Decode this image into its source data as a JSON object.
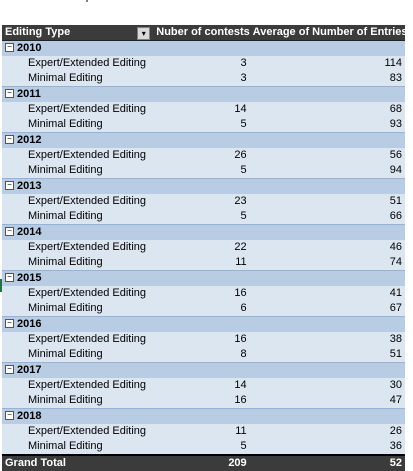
{
  "header": {
    "col1": "Editing Type",
    "col2": "Nuber of contests",
    "col3": "Average of Number of Entries",
    "filter_icon": "filter-dropdown-icon"
  },
  "years": [
    {
      "year": "2010",
      "rows": [
        {
          "type": "Expert/Extended Editing",
          "contests": "3",
          "avg": "114"
        },
        {
          "type": "Minimal Editing",
          "contests": "3",
          "avg": "83"
        }
      ]
    },
    {
      "year": "2011",
      "rows": [
        {
          "type": "Expert/Extended Editing",
          "contests": "14",
          "avg": "68"
        },
        {
          "type": "Minimal Editing",
          "contests": "5",
          "avg": "93"
        }
      ]
    },
    {
      "year": "2012",
      "rows": [
        {
          "type": "Expert/Extended Editing",
          "contests": "26",
          "avg": "56"
        },
        {
          "type": "Minimal Editing",
          "contests": "5",
          "avg": "94"
        }
      ]
    },
    {
      "year": "2013",
      "rows": [
        {
          "type": "Expert/Extended Editing",
          "contests": "23",
          "avg": "51"
        },
        {
          "type": "Minimal Editing",
          "contests": "5",
          "avg": "66"
        }
      ]
    },
    {
      "year": "2014",
      "rows": [
        {
          "type": "Expert/Extended Editing",
          "contests": "22",
          "avg": "46"
        },
        {
          "type": "Minimal Editing",
          "contests": "11",
          "avg": "74"
        }
      ]
    },
    {
      "year": "2015",
      "rows": [
        {
          "type": "Expert/Extended Editing",
          "contests": "16",
          "avg": "41"
        },
        {
          "type": "Minimal Editing",
          "contests": "6",
          "avg": "67"
        }
      ]
    },
    {
      "year": "2016",
      "rows": [
        {
          "type": "Expert/Extended Editing",
          "contests": "16",
          "avg": "38"
        },
        {
          "type": "Minimal Editing",
          "contests": "8",
          "avg": "51"
        }
      ]
    },
    {
      "year": "2017",
      "rows": [
        {
          "type": "Expert/Extended Editing",
          "contests": "14",
          "avg": "30"
        },
        {
          "type": "Minimal Editing",
          "contests": "16",
          "avg": "47"
        }
      ]
    },
    {
      "year": "2018",
      "rows": [
        {
          "type": "Expert/Extended Editing",
          "contests": "11",
          "avg": "26"
        },
        {
          "type": "Minimal Editing",
          "contests": "5",
          "avg": "36"
        }
      ]
    }
  ],
  "grand_total": {
    "label": "Grand Total",
    "contests": "209",
    "avg": "52"
  },
  "toggle_symbol": "⊟",
  "colors": {
    "header_bg": "#3b3b3b",
    "year_bg": "#b8cce4",
    "row_bg": "#dce6f1"
  }
}
